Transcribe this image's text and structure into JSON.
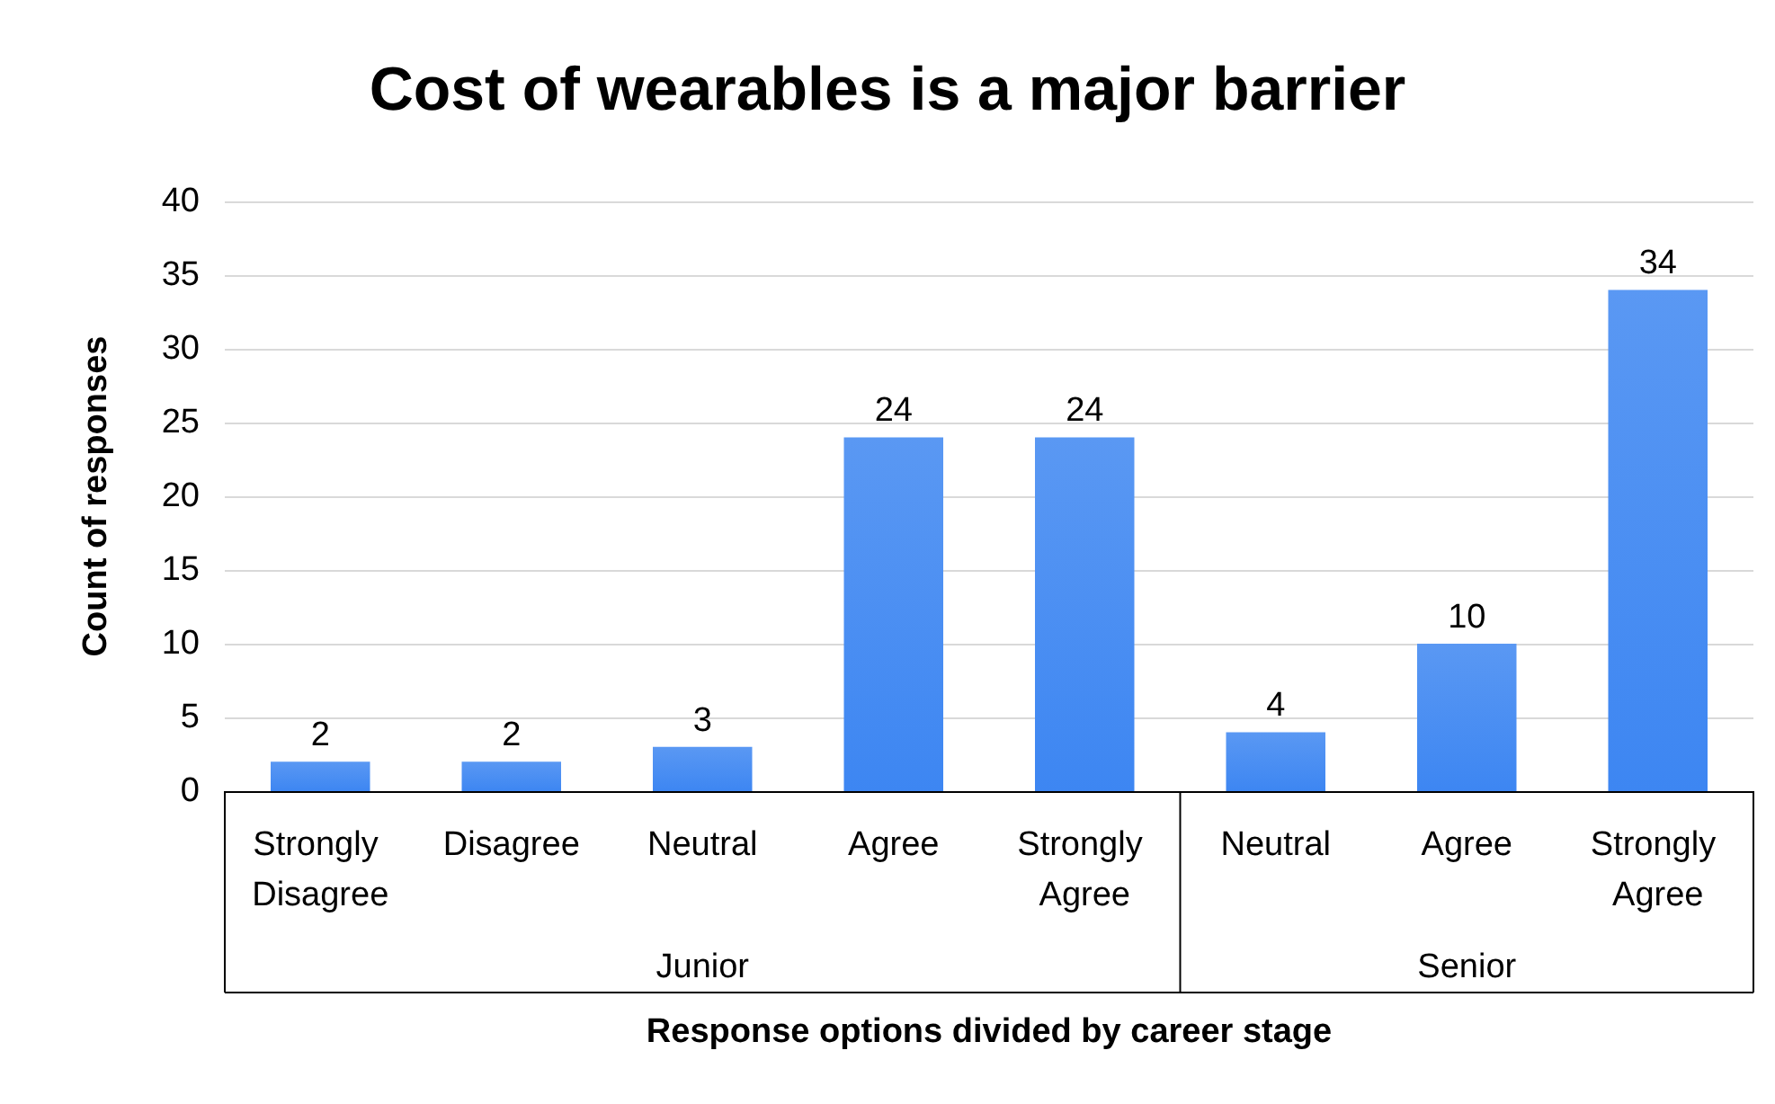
{
  "chart_data": {
    "type": "bar",
    "title": "Cost of wearables is a major barrier",
    "xlabel": "Response options divided by career stage",
    "ylabel": "Count of responses",
    "categories": [
      "Strongly Disagree",
      "Disagree",
      "Neutral",
      "Agree",
      "Strongly Agree",
      "Neutral",
      "Agree",
      "Strongly Agree"
    ],
    "values": [
      2,
      2,
      3,
      24,
      24,
      4,
      10,
      34
    ],
    "color": "#3d86f2",
    "ylim": [
      0,
      40
    ],
    "yticks": [
      0,
      5,
      10,
      15,
      20,
      25,
      30,
      35,
      40
    ],
    "grid": "y",
    "data_labels": true,
    "annotations": [
      "Junior",
      "Senior"
    ]
  }
}
